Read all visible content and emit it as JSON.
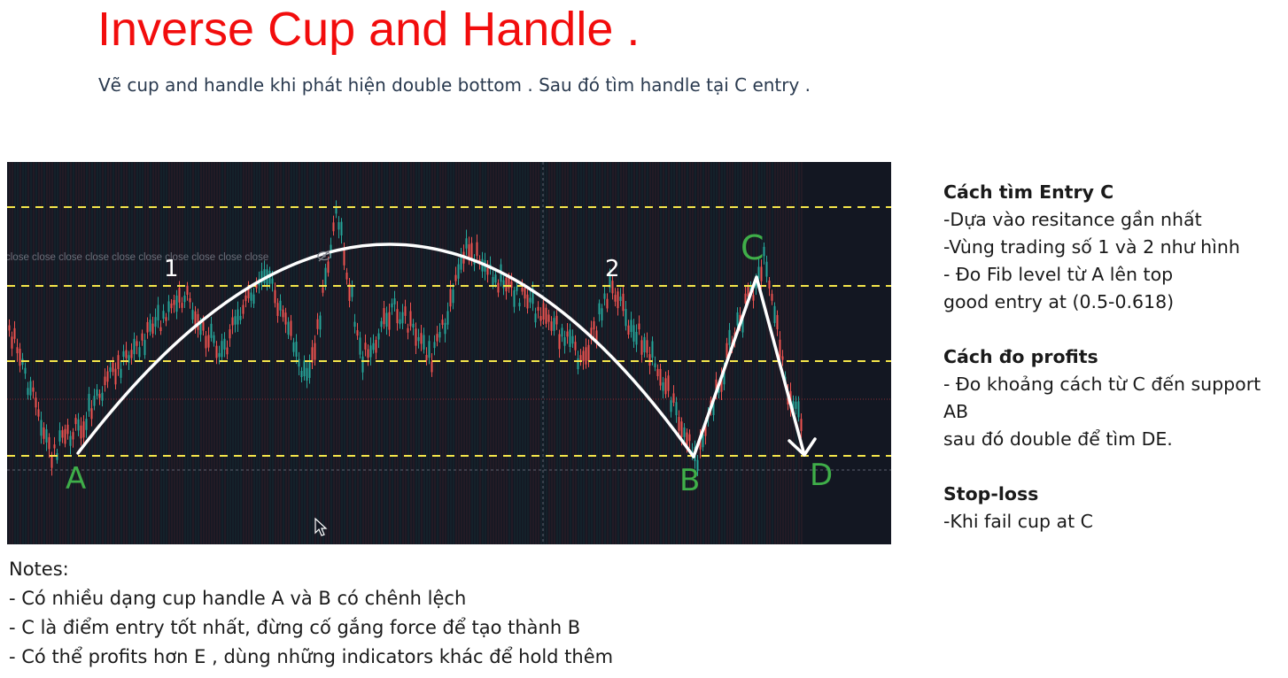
{
  "header": {
    "title": "Inverse Cup and Handle .",
    "subtitle": "Vẽ cup and handle khi phát hiện double bottom . Sau đó tìm handle tại C entry ."
  },
  "chart": {
    "legend_text": "close close close close close close close close close close",
    "labels": {
      "one": "1",
      "two": "2",
      "A": "A",
      "B": "B",
      "C": "C",
      "D": "D"
    },
    "colors": {
      "background": "#131722",
      "level_line": "#f5e64a",
      "pattern_line": "#ffffff",
      "label_green": "#3fae49",
      "candle_up": "#26a69a",
      "candle_down": "#ef5350"
    },
    "icons": [
      "eye-off-icon",
      "cursor-arrow-icon"
    ]
  },
  "sidebar": {
    "entry_heading": "Cách tìm Entry C",
    "entry_lines": [
      "-Dựa vào resitance gần nhất",
      "-Vùng trading số 1 và 2 như hình",
      "- Đo Fib level từ A lên top",
      "good entry at (0.5-0.618)"
    ],
    "profit_heading": "Cách đo profits",
    "profit_lines": [
      "- Đo khoảng cách từ C đến support",
      "AB",
      "sau đó double để tìm DE."
    ],
    "stop_heading": "Stop-loss",
    "stop_lines": [
      "-Khi fail cup at C"
    ]
  },
  "notes": {
    "heading": "Notes:",
    "lines": [
      "- Có nhiều dạng cup handle A và B có chênh lệch",
      "- C là điểm entry tốt nhất, đừng cố gắng force để tạo thành B",
      "- Có thể profits hơn E , dùng những indicators khác để hold thêm"
    ]
  }
}
